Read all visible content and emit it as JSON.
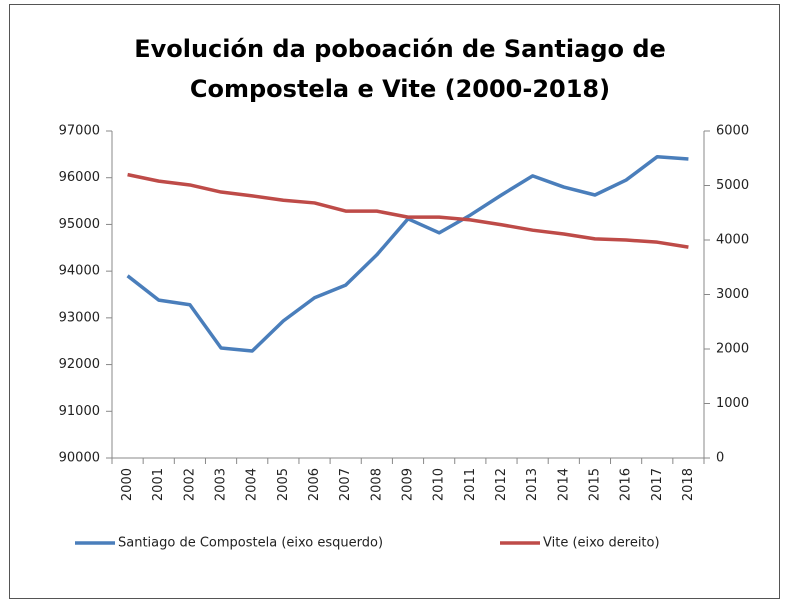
{
  "chart_data": {
    "type": "line",
    "title": [
      "Evolución da poboación de Santiago de",
      "Compostela e Vite (2000-2018)"
    ],
    "categories": [
      "2000",
      "2001",
      "2002",
      "2003",
      "2004",
      "2005",
      "2006",
      "2007",
      "2008",
      "2009",
      "2010",
      "2011",
      "2012",
      "2013",
      "2014",
      "2015",
      "2016",
      "2017",
      "2018"
    ],
    "series": [
      {
        "name": "Santiago de Compostela (eixo esquerdo)",
        "color": "#4a7ebb",
        "axis": "y",
        "values": [
          93900,
          93380,
          93280,
          92355,
          92290,
          92935,
          93430,
          93700,
          94350,
          95120,
          94820,
          95200,
          95630,
          96040,
          95800,
          95630,
          95950,
          96450,
          96400
        ]
      },
      {
        "name": "Vite (eixo dereito)",
        "color": "#be4b48",
        "axis": "y2",
        "values": [
          5200,
          5080,
          5010,
          4880,
          4810,
          4730,
          4680,
          4530,
          4530,
          4420,
          4420,
          4370,
          4280,
          4180,
          4110,
          4020,
          4000,
          3960,
          3870
        ]
      }
    ],
    "ylim": [
      90000,
      97000
    ],
    "yticks": [
      90000,
      91000,
      92000,
      93000,
      94000,
      95000,
      96000,
      97000
    ],
    "y2lim": [
      0,
      6000
    ],
    "y2ticks": [
      0,
      1000,
      2000,
      3000,
      4000,
      5000,
      6000
    ],
    "grid": false,
    "legend": "bottom"
  }
}
